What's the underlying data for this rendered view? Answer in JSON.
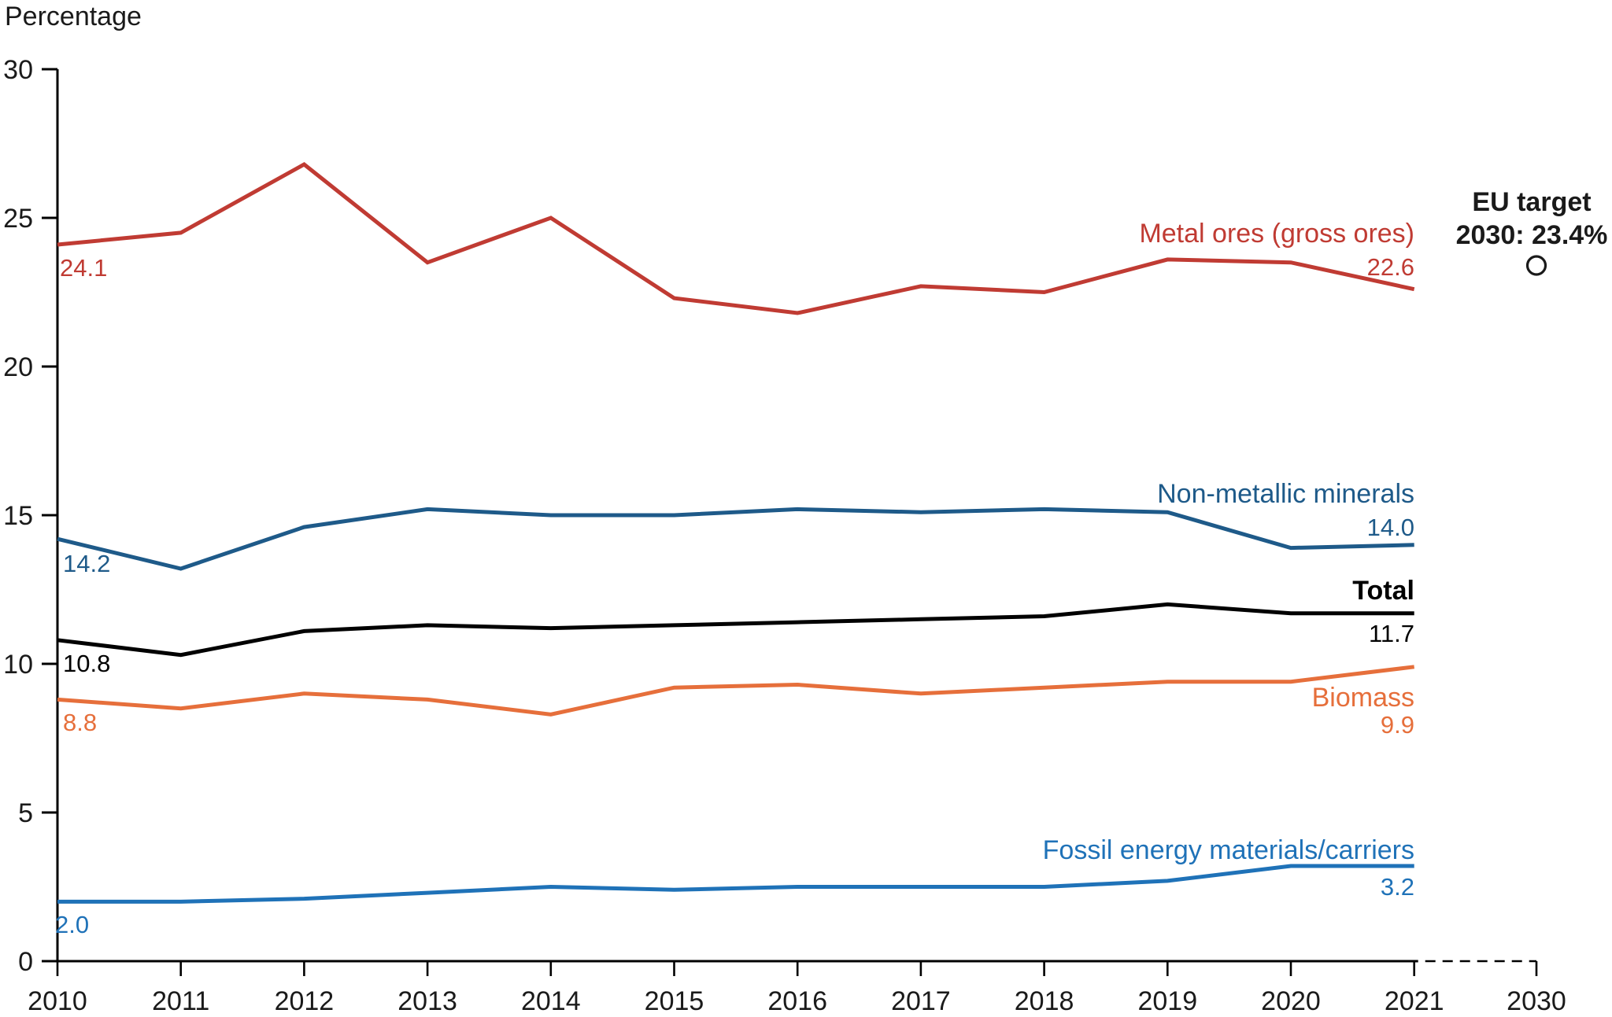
{
  "y_axis_title": "Percentage",
  "colors": {
    "metal_ores": "#c03b33",
    "non_metallic_minerals": "#1e5a89",
    "total": "#000000",
    "biomass": "#e66f3b",
    "fossil": "#1f72b8",
    "axis": "#000000",
    "text": "#1a1a1a",
    "target_marker": "#1a1a1a"
  },
  "chart_data": {
    "type": "line",
    "x": [
      2010,
      2011,
      2012,
      2013,
      2014,
      2015,
      2016,
      2017,
      2018,
      2019,
      2020,
      2021
    ],
    "x_tick_labels": [
      "2010",
      "2011",
      "2012",
      "2013",
      "2014",
      "2015",
      "2016",
      "2017",
      "2018",
      "2019",
      "2020",
      "2021",
      "2030"
    ],
    "y_ticks": [
      "0",
      "5",
      "10",
      "15",
      "20",
      "25",
      "30"
    ],
    "ylim": [
      0,
      30
    ],
    "grid": false,
    "legend_position": "inline-right-of-lines",
    "series": [
      {
        "name": "Metal ores (gross ores)",
        "slug": "metal-ores",
        "color_key": "metal_ores",
        "values": [
          24.1,
          24.5,
          26.8,
          23.5,
          25.0,
          22.3,
          21.8,
          22.7,
          22.5,
          23.6,
          23.5,
          22.6
        ],
        "start_label": "24.1",
        "end_label": "22.6"
      },
      {
        "name": "Non-metallic minerals",
        "slug": "non-metallic-minerals",
        "color_key": "non_metallic_minerals",
        "values": [
          14.2,
          13.2,
          14.6,
          15.2,
          15.0,
          15.0,
          15.2,
          15.1,
          15.2,
          15.1,
          13.9,
          14.0
        ],
        "start_label": "14.2",
        "end_label": "14.0"
      },
      {
        "name": "Total",
        "slug": "total",
        "color_key": "total",
        "bold": true,
        "values": [
          10.8,
          10.3,
          11.1,
          11.3,
          11.2,
          11.3,
          11.4,
          11.5,
          11.6,
          12.0,
          11.7,
          11.7
        ],
        "start_label": "10.8",
        "end_label": "11.7"
      },
      {
        "name": "Biomass",
        "slug": "biomass",
        "color_key": "biomass",
        "values": [
          8.8,
          8.5,
          9.0,
          8.8,
          8.3,
          9.2,
          9.3,
          9.0,
          9.2,
          9.4,
          9.4,
          9.9
        ],
        "start_label": "8.8",
        "end_label": "9.9"
      },
      {
        "name": "Fossil energy materials/carriers",
        "slug": "fossil-energy",
        "color_key": "fossil",
        "values": [
          2.0,
          2.0,
          2.1,
          2.3,
          2.5,
          2.4,
          2.5,
          2.5,
          2.5,
          2.7,
          3.2,
          3.2
        ],
        "start_label": "2.0",
        "end_label": "3.2"
      }
    ],
    "target": {
      "label_line1": "EU target",
      "label_line2": "2030: 23.4%",
      "year": "2030",
      "value": 23.4
    }
  }
}
